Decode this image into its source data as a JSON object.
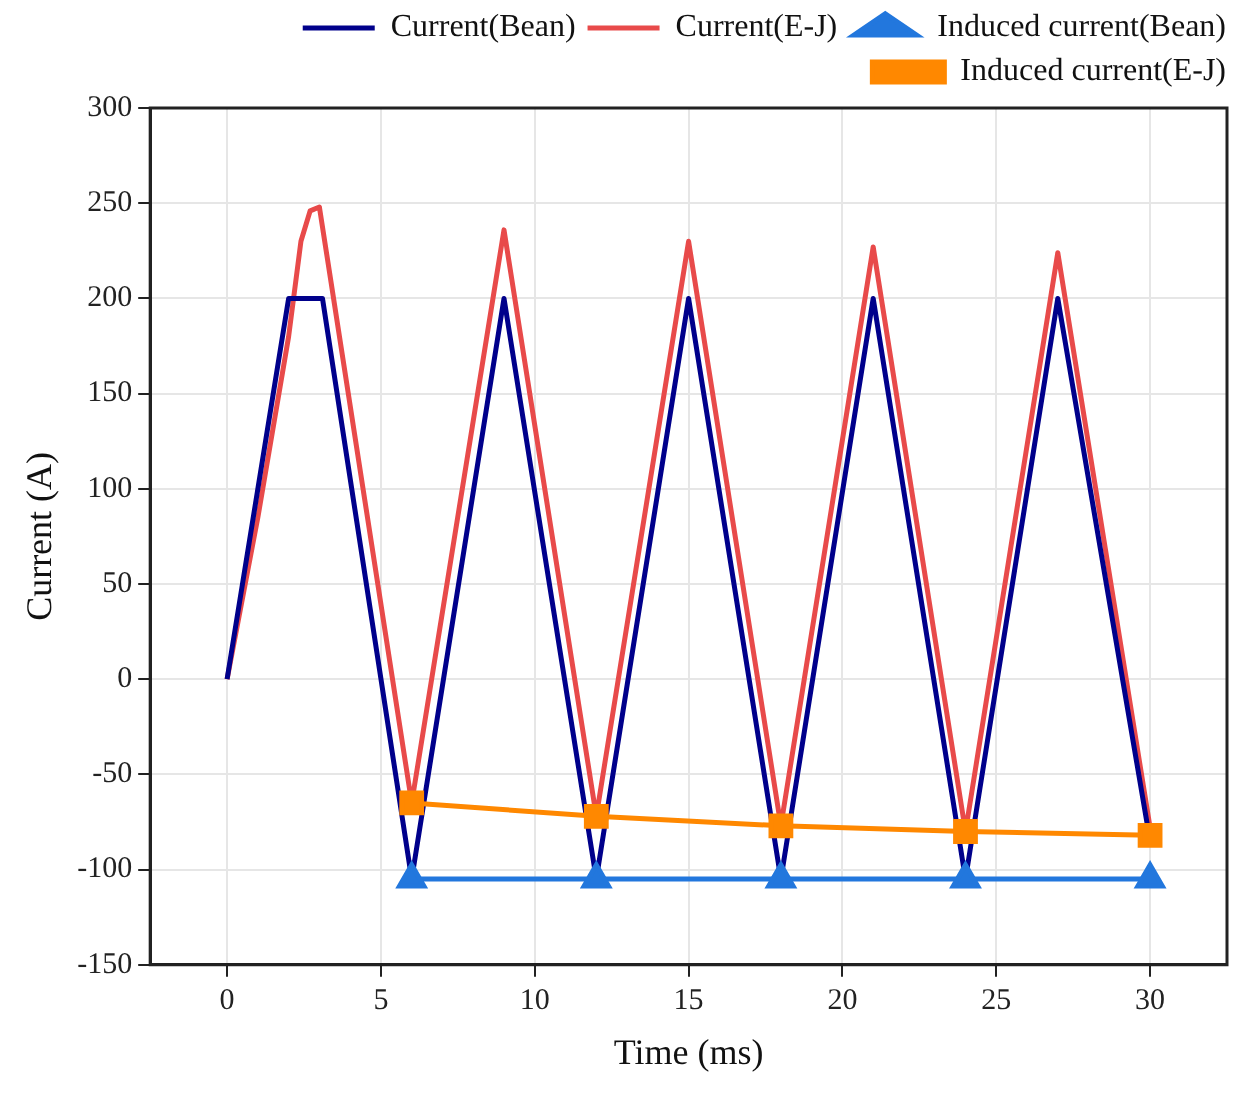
{
  "chart_data": {
    "type": "line",
    "xlabel": "Time (ms)",
    "ylabel": "Current (A)",
    "xlim": [
      -2.5,
      32.5
    ],
    "xticks": [
      0,
      5,
      10,
      15,
      20,
      25,
      30
    ],
    "ylim": [
      -150,
      300
    ],
    "yticks": [
      -150,
      -100,
      -50,
      0,
      50,
      100,
      150,
      200,
      250,
      300
    ],
    "grid": true,
    "legend": "top right",
    "line_style": "solid",
    "series": [
      {
        "name": "Current(Bean)",
        "color": "#00008b",
        "marker": "none",
        "x": [
          0,
          2,
          3.1,
          6,
          9,
          12,
          15,
          18,
          21,
          24,
          27,
          30
        ],
        "values": [
          0,
          200,
          200,
          -105,
          200,
          -105,
          200,
          -105,
          200,
          -105,
          200,
          -85
        ]
      },
      {
        "name": "Current(E-J)",
        "color": "#e84a4a",
        "marker": "none",
        "x": [
          0,
          1,
          2,
          2.4,
          2.7,
          3,
          6,
          9,
          12,
          15,
          18,
          21,
          24,
          27,
          30
        ],
        "values": [
          0,
          85,
          180,
          230,
          246,
          248,
          -65,
          236,
          -72,
          230,
          -77,
          227,
          -80,
          224,
          -78
        ]
      },
      {
        "name": "Induced current(Bean)",
        "color": "#2277dd",
        "marker": "triangle",
        "x": [
          6,
          12,
          18,
          24,
          30
        ],
        "values": [
          -105,
          -105,
          -105,
          -105,
          -105
        ]
      },
      {
        "name": "Induced current(E-J)",
        "color": "#ff8800",
        "marker": "square",
        "x": [
          6,
          12,
          18,
          24,
          30
        ],
        "values": [
          -65,
          -72,
          -77,
          -80,
          -82
        ]
      }
    ]
  }
}
